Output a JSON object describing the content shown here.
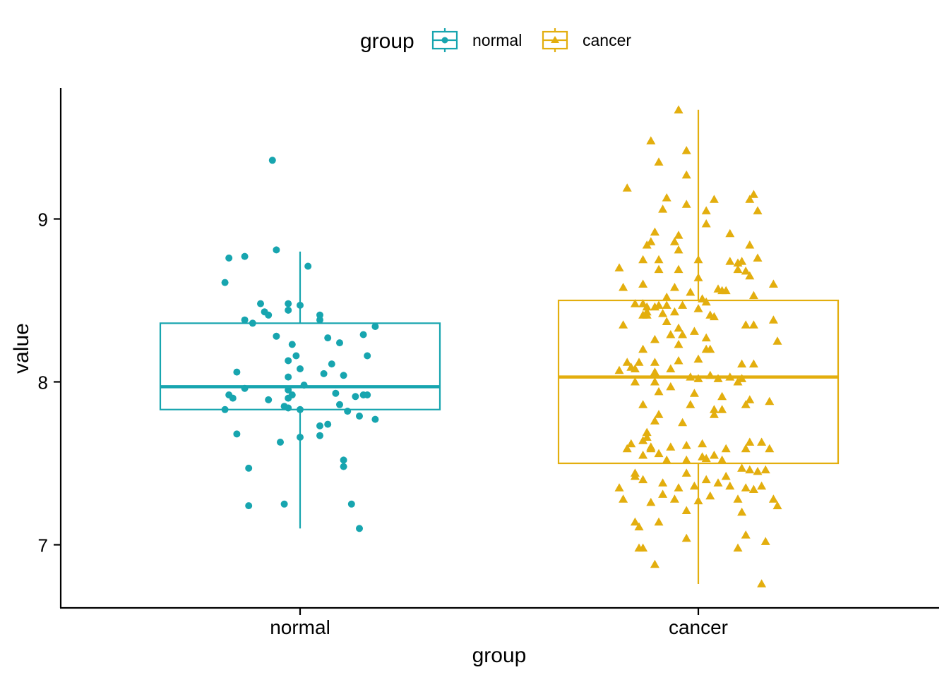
{
  "chart_data": {
    "type": "box",
    "title": "",
    "xlabel": "group",
    "ylabel": "value",
    "ylim": [
      6.62,
      9.8
    ],
    "yticks": [
      7,
      8,
      9
    ],
    "categories": [
      "normal",
      "cancer"
    ],
    "grid": false,
    "legend": {
      "position": "top",
      "title": "group",
      "entries": [
        {
          "label": "normal",
          "color": "#17A5AF",
          "marker": "circle"
        },
        {
          "label": "cancer",
          "color": "#E3AE0E",
          "marker": "triangle"
        }
      ]
    },
    "series": [
      {
        "name": "normal",
        "color": "#17A5AF",
        "marker": "circle",
        "box": {
          "whisker_low": 7.1,
          "q1": 7.83,
          "median": 7.97,
          "q3": 8.36,
          "whisker_high": 8.8
        },
        "points": [
          [
            -0.18,
            8.76
          ],
          [
            -0.14,
            8.77
          ],
          [
            -0.06,
            8.81
          ],
          [
            0.02,
            8.71
          ],
          [
            -0.19,
            8.61
          ],
          [
            -0.1,
            8.48
          ],
          [
            0.0,
            8.47
          ],
          [
            -0.03,
            8.48
          ],
          [
            -0.09,
            8.43
          ],
          [
            -0.08,
            8.41
          ],
          [
            -0.03,
            8.44
          ],
          [
            0.05,
            8.41
          ],
          [
            -0.14,
            8.38
          ],
          [
            0.05,
            8.38
          ],
          [
            -0.12,
            8.36
          ],
          [
            0.19,
            8.34
          ],
          [
            0.16,
            8.29
          ],
          [
            -0.06,
            8.28
          ],
          [
            0.07,
            8.27
          ],
          [
            0.1,
            8.24
          ],
          [
            -0.02,
            8.23
          ],
          [
            -0.01,
            8.16
          ],
          [
            0.17,
            8.16
          ],
          [
            -0.03,
            8.13
          ],
          [
            0.08,
            8.11
          ],
          [
            0.0,
            8.08
          ],
          [
            -0.16,
            8.06
          ],
          [
            0.06,
            8.05
          ],
          [
            0.11,
            8.04
          ],
          [
            -0.03,
            8.03
          ],
          [
            0.01,
            7.98
          ],
          [
            -0.14,
            7.96
          ],
          [
            -0.03,
            7.95
          ],
          [
            0.09,
            7.93
          ],
          [
            -0.18,
            7.92
          ],
          [
            -0.02,
            7.92
          ],
          [
            0.16,
            7.92
          ],
          [
            0.14,
            7.91
          ],
          [
            0.17,
            7.92
          ],
          [
            -0.17,
            7.9
          ],
          [
            -0.03,
            7.9
          ],
          [
            -0.08,
            7.89
          ],
          [
            0.1,
            7.86
          ],
          [
            -0.04,
            7.85
          ],
          [
            -0.03,
            7.84
          ],
          [
            0.0,
            7.83
          ],
          [
            -0.19,
            7.83
          ],
          [
            0.12,
            7.82
          ],
          [
            0.15,
            7.79
          ],
          [
            0.19,
            7.77
          ],
          [
            0.07,
            7.74
          ],
          [
            0.05,
            7.73
          ],
          [
            0.05,
            7.67
          ],
          [
            -0.16,
            7.68
          ],
          [
            0.0,
            7.66
          ],
          [
            -0.05,
            7.63
          ],
          [
            0.11,
            7.52
          ],
          [
            0.11,
            7.48
          ],
          [
            -0.13,
            7.47
          ],
          [
            -0.04,
            7.25
          ],
          [
            -0.13,
            7.24
          ],
          [
            0.13,
            7.25
          ],
          [
            -0.07,
            9.36
          ],
          [
            0.15,
            7.1
          ]
        ]
      },
      {
        "name": "cancer",
        "color": "#E3AE0E",
        "marker": "triangle",
        "box": {
          "whisker_low": 6.76,
          "q1": 7.5,
          "median": 8.03,
          "q3": 8.5,
          "whisker_high": 9.67
        },
        "points": [
          [
            -0.05,
            9.67
          ],
          [
            -0.12,
            9.48
          ],
          [
            -0.03,
            9.42
          ],
          [
            -0.1,
            9.35
          ],
          [
            -0.03,
            9.27
          ],
          [
            -0.18,
            9.19
          ],
          [
            0.14,
            9.15
          ],
          [
            0.13,
            9.12
          ],
          [
            0.04,
            9.12
          ],
          [
            -0.08,
            9.13
          ],
          [
            -0.03,
            9.09
          ],
          [
            -0.09,
            9.06
          ],
          [
            0.02,
            9.05
          ],
          [
            0.15,
            9.05
          ],
          [
            0.02,
            8.97
          ],
          [
            -0.11,
            8.92
          ],
          [
            0.08,
            8.91
          ],
          [
            -0.05,
            8.9
          ],
          [
            -0.06,
            8.86
          ],
          [
            -0.12,
            8.86
          ],
          [
            -0.13,
            8.84
          ],
          [
            0.13,
            8.84
          ],
          [
            -0.05,
            8.81
          ],
          [
            0.0,
            8.75
          ],
          [
            -0.14,
            8.75
          ],
          [
            -0.1,
            8.75
          ],
          [
            0.08,
            8.74
          ],
          [
            0.1,
            8.73
          ],
          [
            0.11,
            8.74
          ],
          [
            0.15,
            8.76
          ],
          [
            -0.2,
            8.7
          ],
          [
            -0.1,
            8.69
          ],
          [
            -0.05,
            8.69
          ],
          [
            0.1,
            8.69
          ],
          [
            0.12,
            8.68
          ],
          [
            0.13,
            8.65
          ],
          [
            0.0,
            8.64
          ],
          [
            -0.14,
            8.6
          ],
          [
            -0.19,
            8.58
          ],
          [
            0.19,
            8.6
          ],
          [
            -0.06,
            8.58
          ],
          [
            0.05,
            8.57
          ],
          [
            0.07,
            8.56
          ],
          [
            -0.02,
            8.55
          ],
          [
            -0.08,
            8.52
          ],
          [
            0.01,
            8.51
          ],
          [
            0.02,
            8.49
          ],
          [
            -0.14,
            8.48
          ],
          [
            -0.16,
            8.48
          ],
          [
            -0.13,
            8.46
          ],
          [
            -0.11,
            8.46
          ],
          [
            -0.1,
            8.47
          ],
          [
            -0.08,
            8.47
          ],
          [
            -0.04,
            8.47
          ],
          [
            0.0,
            8.45
          ],
          [
            -0.13,
            8.43
          ],
          [
            -0.14,
            8.41
          ],
          [
            -0.13,
            8.41
          ],
          [
            -0.09,
            8.42
          ],
          [
            -0.06,
            8.43
          ],
          [
            0.03,
            8.41
          ],
          [
            0.04,
            8.4
          ],
          [
            0.19,
            8.38
          ],
          [
            -0.08,
            8.37
          ],
          [
            -0.19,
            8.35
          ],
          [
            0.12,
            8.35
          ],
          [
            0.14,
            8.35
          ],
          [
            -0.05,
            8.33
          ],
          [
            -0.01,
            8.31
          ],
          [
            -0.07,
            8.29
          ],
          [
            -0.04,
            8.29
          ],
          [
            0.02,
            8.27
          ],
          [
            -0.11,
            8.26
          ],
          [
            0.2,
            8.25
          ],
          [
            -0.05,
            8.23
          ],
          [
            -0.14,
            8.2
          ],
          [
            0.02,
            8.2
          ],
          [
            0.03,
            8.2
          ],
          [
            0.0,
            8.14
          ],
          [
            -0.18,
            8.12
          ],
          [
            -0.15,
            8.12
          ],
          [
            -0.11,
            8.12
          ],
          [
            0.11,
            8.11
          ],
          [
            0.14,
            8.11
          ],
          [
            -0.17,
            8.09
          ],
          [
            -0.16,
            8.08
          ],
          [
            -0.07,
            8.08
          ],
          [
            -0.2,
            8.07
          ],
          [
            -0.11,
            8.06
          ],
          [
            0.03,
            8.04
          ],
          [
            -0.02,
            8.03
          ],
          [
            0.08,
            8.03
          ],
          [
            0.0,
            8.02
          ],
          [
            0.05,
            8.02
          ],
          [
            0.11,
            8.02
          ],
          [
            -0.16,
            8.0
          ],
          [
            -0.11,
            8.0
          ],
          [
            0.1,
            8.0
          ],
          [
            -0.07,
            7.97
          ],
          [
            -0.1,
            7.94
          ],
          [
            -0.01,
            7.93
          ],
          [
            0.06,
            7.91
          ],
          [
            0.13,
            7.89
          ],
          [
            0.18,
            7.88
          ],
          [
            -0.14,
            7.86
          ],
          [
            -0.02,
            7.86
          ],
          [
            0.12,
            7.86
          ],
          [
            0.06,
            7.83
          ],
          [
            -0.1,
            7.8
          ],
          [
            -0.11,
            7.76
          ],
          [
            -0.04,
            7.75
          ],
          [
            0.04,
            7.8
          ],
          [
            0.04,
            7.83
          ],
          [
            -0.13,
            7.69
          ],
          [
            -0.14,
            7.64
          ],
          [
            -0.13,
            7.66
          ],
          [
            -0.12,
            7.6
          ],
          [
            -0.1,
            7.56
          ],
          [
            -0.07,
            7.6
          ],
          [
            -0.03,
            7.61
          ],
          [
            0.01,
            7.54
          ],
          [
            0.04,
            7.55
          ],
          [
            0.07,
            7.59
          ],
          [
            0.12,
            7.59
          ],
          [
            0.18,
            7.59
          ],
          [
            -0.18,
            7.59
          ],
          [
            -0.17,
            7.62
          ],
          [
            -0.14,
            7.55
          ],
          [
            -0.08,
            7.52
          ],
          [
            -0.03,
            7.52
          ],
          [
            0.02,
            7.53
          ],
          [
            0.06,
            7.52
          ],
          [
            0.11,
            7.47
          ],
          [
            0.13,
            7.46
          ],
          [
            0.15,
            7.45
          ],
          [
            0.17,
            7.46
          ],
          [
            -0.16,
            7.42
          ],
          [
            -0.14,
            7.4
          ],
          [
            -0.09,
            7.38
          ],
          [
            -0.05,
            7.35
          ],
          [
            -0.01,
            7.36
          ],
          [
            0.02,
            7.4
          ],
          [
            0.05,
            7.38
          ],
          [
            0.08,
            7.36
          ],
          [
            0.12,
            7.35
          ],
          [
            0.14,
            7.34
          ],
          [
            0.16,
            7.36
          ],
          [
            -0.2,
            7.35
          ],
          [
            -0.19,
            7.28
          ],
          [
            -0.12,
            7.26
          ],
          [
            -0.09,
            7.31
          ],
          [
            -0.06,
            7.28
          ],
          [
            0.0,
            7.27
          ],
          [
            0.03,
            7.3
          ],
          [
            0.1,
            7.28
          ],
          [
            0.19,
            7.28
          ],
          [
            0.2,
            7.24
          ],
          [
            -0.03,
            7.21
          ],
          [
            0.11,
            7.2
          ],
          [
            -0.16,
            7.14
          ],
          [
            -0.1,
            7.14
          ],
          [
            -0.15,
            7.11
          ],
          [
            0.12,
            7.06
          ],
          [
            -0.03,
            7.04
          ],
          [
            0.17,
            7.02
          ],
          [
            0.1,
            6.98
          ],
          [
            -0.14,
            6.98
          ],
          [
            -0.15,
            6.98
          ],
          [
            -0.11,
            6.88
          ],
          [
            0.16,
            6.76
          ],
          [
            -0.16,
            7.44
          ],
          [
            -0.03,
            7.44
          ],
          [
            0.07,
            7.42
          ],
          [
            0.13,
            7.63
          ],
          [
            0.01,
            7.62
          ],
          [
            0.14,
            8.53
          ],
          [
            0.06,
            8.56
          ],
          [
            -0.05,
            8.13
          ],
          [
            0.16,
            7.63
          ],
          [
            -0.12,
            7.59
          ]
        ]
      }
    ]
  }
}
